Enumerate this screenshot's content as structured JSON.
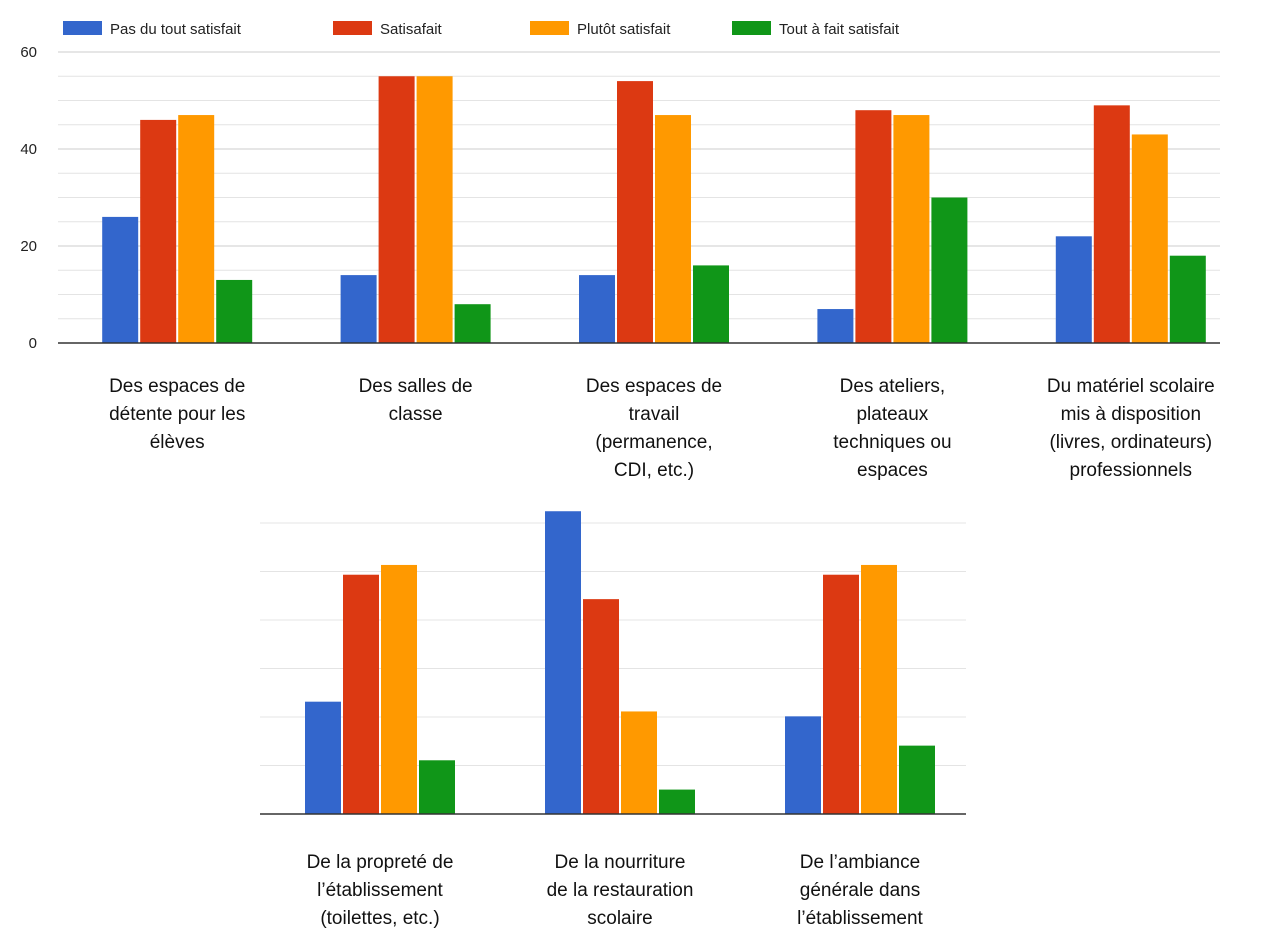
{
  "chart_data": {
    "type": "bar",
    "legend_position": "top-left",
    "grid": true,
    "series": [
      {
        "name": "Pas du tout satisfait",
        "color": "#3366cc"
      },
      {
        "name": "Satisafait",
        "color": "#dc3912"
      },
      {
        "name": "Plutôt satisfait",
        "color": "#ff9900"
      },
      {
        "name": "Tout à fait satisfait",
        "color": "#109618"
      }
    ],
    "panels": [
      {
        "yticks": [
          "0",
          "20",
          "40",
          "60"
        ],
        "ylim": [
          0,
          60
        ],
        "categories": [
          {
            "label": [
              "Des espaces de",
              "détente pour les",
              "élèves"
            ],
            "values": [
              26,
              46,
              47,
              13
            ]
          },
          {
            "label": [
              "Des salles de",
              "classe"
            ],
            "values": [
              14,
              55,
              55,
              8
            ]
          },
          {
            "label": [
              "Des espaces de",
              "travail",
              "(permanence,",
              "CDI, etc.)"
            ],
            "values": [
              14,
              54,
              47,
              16
            ]
          },
          {
            "label": [
              "Des ateliers,",
              "plateaux",
              "techniques ou",
              "espaces"
            ],
            "values": [
              7,
              48,
              47,
              30
            ]
          },
          {
            "label": [
              "Du matériel scolaire",
              "mis à disposition",
              "(livres, ordinateurs)",
              "professionnels"
            ],
            "values": [
              22,
              49,
              43,
              18
            ]
          }
        ]
      },
      {
        "ylim": [
          0,
          60
        ],
        "categories": [
          {
            "label": [
              "De la propreté de",
              "l’établissement",
              "(toilettes, etc.)"
            ],
            "values": [
              23,
              49,
              51,
              11
            ]
          },
          {
            "label": [
              "De la nourriture",
              "de la restauration",
              "scolaire"
            ],
            "values": [
              62,
              44,
              21,
              5
            ]
          },
          {
            "label": [
              "De l’ambiance",
              "générale dans",
              "l’établissement"
            ],
            "values": [
              20,
              49,
              51,
              14
            ]
          }
        ]
      }
    ]
  }
}
